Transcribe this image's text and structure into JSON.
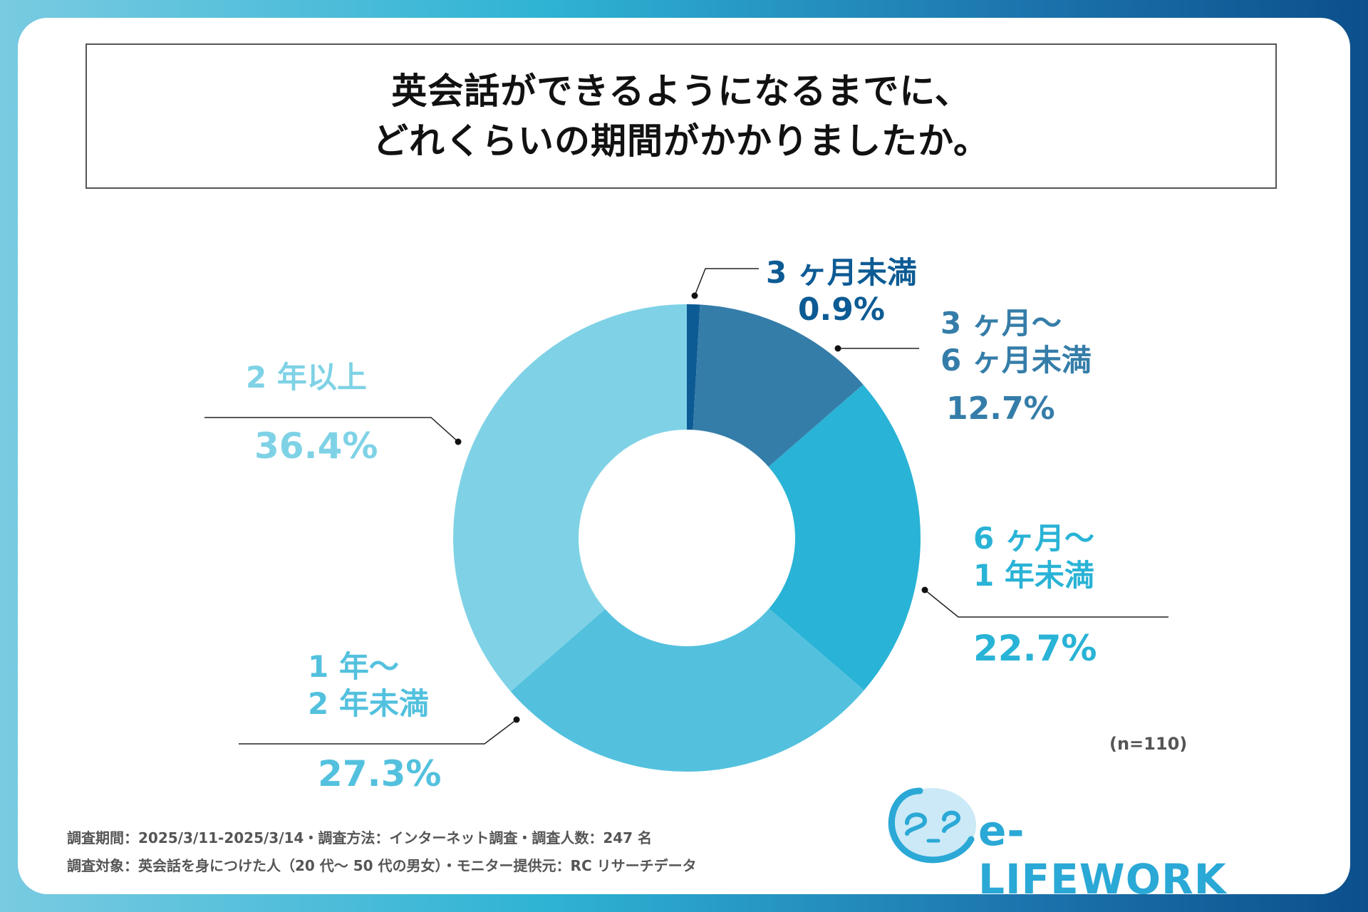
{
  "title": {
    "line1": "英会話ができるようになるまでに、",
    "line2": "どれくらいの期間がかかりましたか。"
  },
  "chart_data": {
    "type": "pie",
    "style": "donut",
    "slices": [
      {
        "label_line1": "3 ヶ月未満",
        "label_line2": "",
        "value": 0.9,
        "display": "0.9%",
        "color": "#0d5b94"
      },
      {
        "label_line1": "3 ヶ月〜",
        "label_line2": "6 ヶ月未満",
        "value": 12.7,
        "display": "12.7%",
        "color": "#357da9"
      },
      {
        "label_line1": "6 ヶ月〜",
        "label_line2": "1 年未満",
        "value": 22.7,
        "display": "22.7%",
        "color": "#29b3d6"
      },
      {
        "label_line1": "1 年〜",
        "label_line2": "2 年未満",
        "value": 27.3,
        "display": "27.3%",
        "color": "#53c1de"
      },
      {
        "label_line1": "2 年以上",
        "label_line2": "",
        "value": 36.4,
        "display": "36.4%",
        "color": "#7fd2e6"
      }
    ],
    "sample_size": "(n=110)"
  },
  "footer": {
    "line1": "調査期間：2025/3/11-2025/3/14・調査方法：インターネット調査・調査人数：247 名",
    "line2": "調査対象：英会話を身につけた人（20 代〜 50 代の男女）・モニター提供元：RC リサーチデータ"
  },
  "logo": {
    "text": "e-LIFEWORK",
    "color": "#2aa8d6"
  }
}
